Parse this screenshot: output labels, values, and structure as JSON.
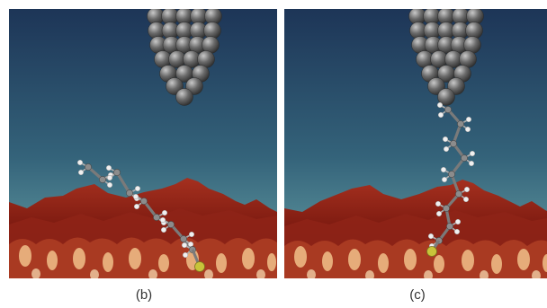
{
  "panels": [
    {
      "id": "b",
      "caption": "(b)",
      "molecule": "attached-to-surface"
    },
    {
      "id": "c",
      "caption": "(c)",
      "molecule": "stretched-to-tip"
    }
  ],
  "colors": {
    "sky_top": "#1d3557",
    "sky_bottom": "#5f9aa3",
    "surface_dark": "#5a0f0a",
    "surface_mid": "#9e2a1e",
    "surface_light": "#f2c088",
    "tip_atom": "#5a5a5a",
    "carbon": "#8c8c8c",
    "hydrogen": "#f0f0f0",
    "sulfur": "#c8c43a"
  }
}
